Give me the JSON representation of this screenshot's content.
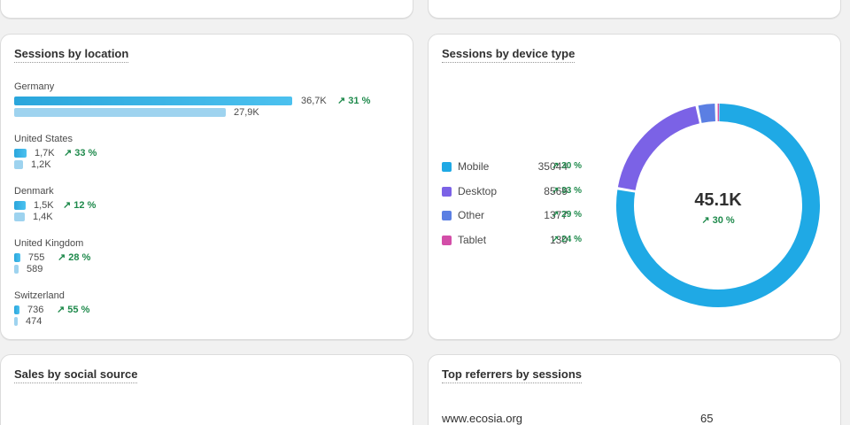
{
  "location": {
    "title": "Sessions by location",
    "rows": [
      {
        "name": "Germany",
        "current": "36,7K",
        "previous": "27,9K",
        "change": "31 %",
        "cur_frac": 1.0,
        "prev_frac": 0.76
      },
      {
        "name": "United States",
        "current": "1,7K",
        "previous": "1,2K",
        "change": "33 %",
        "cur_frac": 0.046,
        "prev_frac": 0.033
      },
      {
        "name": "Denmark",
        "current": "1,5K",
        "previous": "1,4K",
        "change": "12 %",
        "cur_frac": 0.041,
        "prev_frac": 0.038
      },
      {
        "name": "United Kingdom",
        "current": "755",
        "previous": "589",
        "change": "28 %",
        "cur_frac": 0.021,
        "prev_frac": 0.016
      },
      {
        "name": "Switzerland",
        "current": "736",
        "previous": "474",
        "change": "55 %",
        "cur_frac": 0.02,
        "prev_frac": 0.013
      }
    ]
  },
  "device": {
    "title": "Sessions by device type",
    "total": "45.1K",
    "total_change": "30 %",
    "items": [
      {
        "label": "Mobile",
        "value": "35044",
        "change": "30 %",
        "color": "#1fa9e5"
      },
      {
        "label": "Desktop",
        "value": "8569",
        "change": "33 %",
        "color": "#7b62e6"
      },
      {
        "label": "Other",
        "value": "1377",
        "change": "29 %",
        "color": "#5b7fe3"
      },
      {
        "label": "Tablet",
        "value": "130",
        "change": "24 %",
        "color": "#d34ea8"
      }
    ]
  },
  "chart_data": {
    "type": "pie",
    "categories": [
      "Mobile",
      "Desktop",
      "Other",
      "Tablet"
    ],
    "values": [
      35044,
      8569,
      1377,
      130
    ],
    "title": "Sessions by device type"
  },
  "social": {
    "title": "Sales by social source"
  },
  "referrers": {
    "title": "Top referrers by sessions",
    "rows": [
      {
        "site": "www.ecosia.org",
        "sessions": "65"
      }
    ]
  }
}
